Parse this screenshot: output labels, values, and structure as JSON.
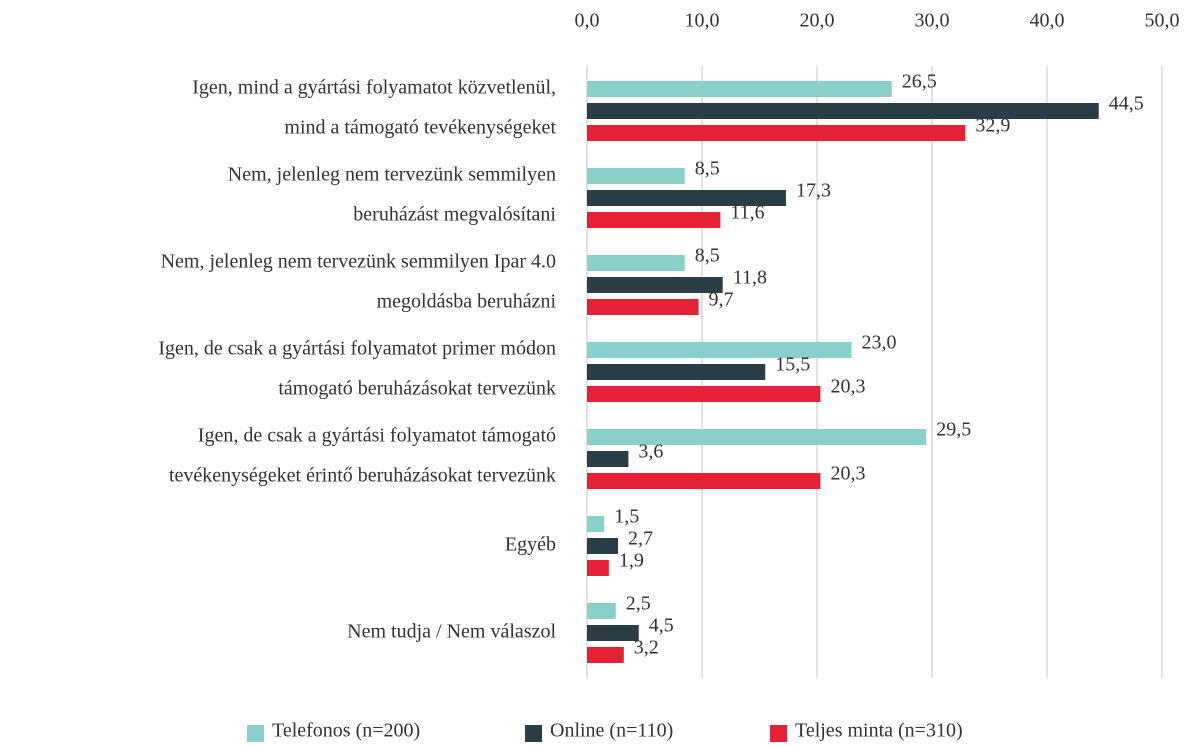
{
  "chart_data": {
    "type": "bar",
    "orientation": "horizontal",
    "categories": [
      [
        "Igen, mind a gyártási folyamatot közvetlenül,",
        "mind a támogató tevékenységeket"
      ],
      [
        "Nem, jelenleg nem tervezünk semmilyen",
        "beruházást megvalósítani"
      ],
      [
        "Nem, jelenleg nem tervezünk semmilyen Ipar 4.0",
        "megoldásba beruházni"
      ],
      [
        "Igen, de csak a gyártási folyamatot primer módon",
        "támogató beruházásokat tervezünk"
      ],
      [
        "Igen, de csak a gyártási folyamatot támogató",
        "tevékenységeket érintő beruházásokat tervezünk"
      ],
      [
        "Egyéb"
      ],
      [
        "Nem tudja / Nem válaszol"
      ]
    ],
    "series": [
      {
        "name": "Telefonos (n=200)",
        "color": "#88d0c9",
        "values": [
          26.5,
          8.5,
          8.5,
          23.0,
          29.5,
          1.5,
          2.5
        ],
        "value_labels": [
          "26,5",
          "8,5",
          "8,5",
          "23,0",
          "29,5",
          "1,5",
          "2,5"
        ]
      },
      {
        "name": "Online  (n=110)",
        "color": "#2b3d47",
        "values": [
          44.5,
          17.3,
          11.8,
          15.5,
          3.6,
          2.7,
          4.5
        ],
        "value_labels": [
          "44,5",
          "17,3",
          "11,8",
          "15,5",
          "3,6",
          "2,7",
          "4,5"
        ]
      },
      {
        "name": "Teljes minta (n=310)",
        "color": "#e52235",
        "values": [
          32.9,
          11.6,
          9.7,
          20.3,
          20.3,
          1.9,
          3.2
        ],
        "value_labels": [
          "32,9",
          "11,6",
          "9,7",
          "20,3",
          "20,3",
          "1,9",
          "3,2"
        ]
      }
    ],
    "xlim": [
      0,
      50
    ],
    "xticks": [
      {
        "value": 0,
        "label": "0,0"
      },
      {
        "value": 10,
        "label": "10,0"
      },
      {
        "value": 20,
        "label": "20,0"
      },
      {
        "value": 30,
        "label": "30,0"
      },
      {
        "value": 40,
        "label": "40,0"
      },
      {
        "value": 50,
        "label": "50,0"
      }
    ],
    "grid": true,
    "legend": "bottom"
  }
}
